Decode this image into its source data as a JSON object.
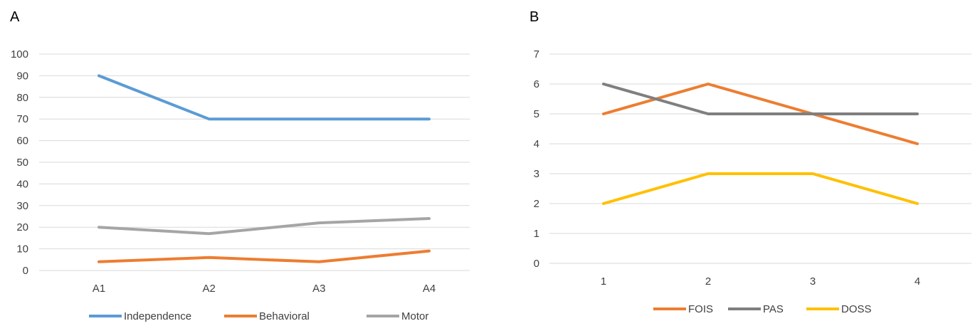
{
  "chart_data": [
    {
      "panel": "A",
      "type": "line",
      "categories": [
        "A1",
        "A2",
        "A3",
        "A4"
      ],
      "ylim": [
        0,
        100
      ],
      "yticks": [
        0,
        10,
        20,
        30,
        40,
        50,
        60,
        70,
        80,
        90,
        100
      ],
      "grid": true,
      "legend_position": "bottom",
      "series": [
        {
          "name": "Independence",
          "color": "#5b9bd5",
          "values": [
            90,
            70,
            70,
            70
          ]
        },
        {
          "name": "Behavioral",
          "color": "#ed7d31",
          "values": [
            4,
            6,
            4,
            9
          ]
        },
        {
          "name": "Motor",
          "color": "#a5a5a5",
          "values": [
            20,
            17,
            22,
            24
          ]
        }
      ]
    },
    {
      "panel": "B",
      "type": "line",
      "categories": [
        "1",
        "2",
        "3",
        "4"
      ],
      "ylim": [
        0,
        7
      ],
      "yticks": [
        0,
        1,
        2,
        3,
        4,
        5,
        6,
        7
      ],
      "grid": true,
      "legend_position": "bottom",
      "series": [
        {
          "name": "FOIS",
          "color": "#ed7d31",
          "values": [
            5,
            6,
            5,
            4
          ]
        },
        {
          "name": "PAS",
          "color": "#7f7f7f",
          "values": [
            6,
            5,
            5,
            5
          ]
        },
        {
          "name": "DOSS",
          "color": "#ffc000",
          "values": [
            2,
            3,
            3,
            2
          ]
        }
      ]
    }
  ]
}
